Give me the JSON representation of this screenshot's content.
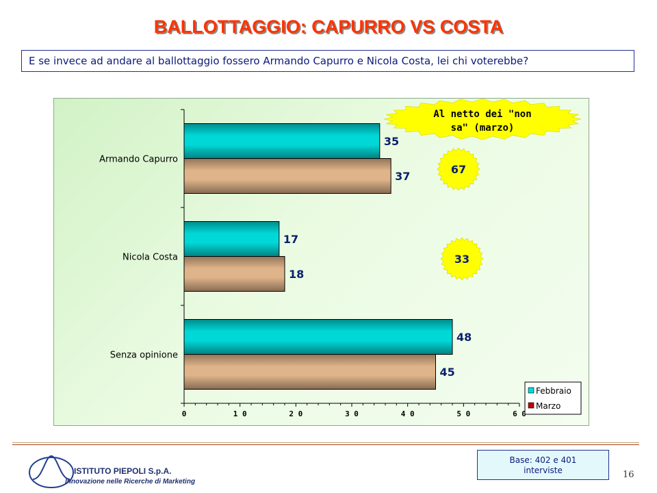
{
  "title": "BALLOTTAGGIO: CAPURRO VS COSTA",
  "question": "E se invece ad andare al ballottaggio fossero Armando Capurro e Nicola Costa, lei chi voterebbe?",
  "chart_data": {
    "type": "bar",
    "orientation": "horizontal",
    "categories": [
      "Armando Capurro",
      "Nicola Costa",
      "Senza opinione"
    ],
    "series": [
      {
        "name": "Febbraio",
        "values": [
          35,
          17,
          48
        ],
        "color": "#00d8d8"
      },
      {
        "name": "Marzo",
        "values": [
          37,
          18,
          45
        ],
        "color": "#e0b48a",
        "legend_color": "#c00000"
      }
    ],
    "xlim": [
      0,
      60
    ],
    "x_ticks": [
      "0",
      "1 0",
      "2 0",
      "3 0",
      "4 0",
      "5 0",
      "6 0"
    ],
    "legend_position": "bottom-right",
    "grid": false
  },
  "callout": {
    "lines": [
      "Al netto dei \"non",
      "sa\" (marzo)"
    ],
    "color": "#ffff00"
  },
  "bursts": [
    {
      "label": "67",
      "category": "Armando Capurro"
    },
    {
      "label": "33",
      "category": "Nicola Costa"
    }
  ],
  "footer": {
    "base_lines": [
      "Base: 402 e 401",
      "interviste"
    ],
    "page_number": "16",
    "company": "ISTITUTO PIEPOLI S.p.A.",
    "tagline": "Innovazione nelle Ricerche di Marketing"
  }
}
